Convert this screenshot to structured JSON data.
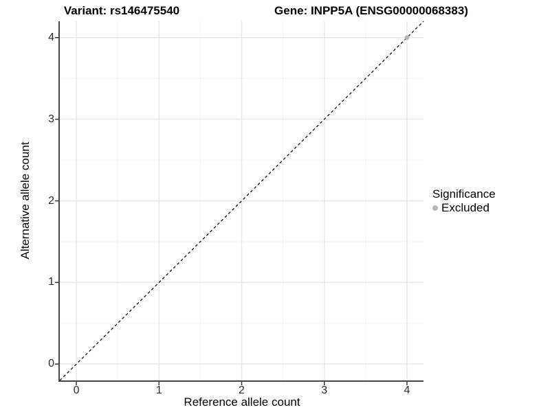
{
  "chart_data": {
    "type": "scatter",
    "titles": {
      "left": "Variant: rs146475540",
      "right": "Gene: INPP5A (ENSG00000068383)"
    },
    "xlabel": "Reference allele count",
    "ylabel": "Alternative allele count",
    "xlim": [
      -0.2,
      4.2
    ],
    "ylim": [
      -0.2,
      4.2
    ],
    "xticks": [
      0,
      1,
      2,
      3,
      4
    ],
    "yticks": [
      0,
      1,
      2,
      3,
      4
    ],
    "minor_xticks": [
      0.5,
      1.5,
      2.5,
      3.5
    ],
    "minor_yticks": [
      0.5,
      1.5,
      2.5,
      3.5
    ],
    "grid": true,
    "identity_line": {
      "equation": "y = x",
      "style": "dashed",
      "color": "#111111"
    },
    "points": [
      {
        "x": 4,
        "y": 4,
        "series": "Excluded"
      }
    ],
    "legend": {
      "title": "Significance",
      "position": "right",
      "items": [
        {
          "label": "Excluded",
          "color": "#b8b8b8"
        }
      ]
    },
    "colors": {
      "background": "#ffffff",
      "grid_major": "#e6e6e6",
      "grid_minor": "#f3f3f3",
      "axis_line": "#474747",
      "tick_mark": "#333333",
      "tick_text": "#2b2b2b",
      "point": "#b8b8b8"
    }
  }
}
